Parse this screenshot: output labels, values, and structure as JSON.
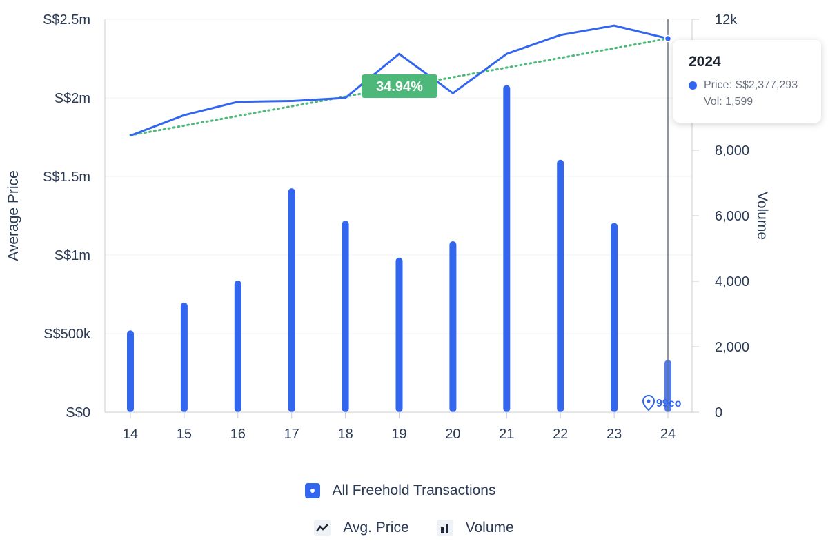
{
  "chart_data": {
    "type": "bar",
    "x": [
      "14",
      "15",
      "16",
      "17",
      "18",
      "19",
      "20",
      "21",
      "22",
      "23",
      "24"
    ],
    "series": [
      {
        "name": "All Freehold Transactions",
        "type": "bar",
        "axis": "right",
        "values": [
          2500,
          3350,
          4020,
          6840,
          5850,
          4720,
          5220,
          9990,
          7710,
          5780,
          1599
        ]
      },
      {
        "type": "line",
        "axis": "left",
        "values": [
          1760000,
          1890000,
          1975000,
          1980000,
          2000000,
          2280000,
          2030000,
          2280000,
          2400000,
          2460000,
          2377293
        ]
      }
    ],
    "trendline": {
      "start": 1762000,
      "end": 2377293,
      "label": "34.94%"
    },
    "left_axis": {
      "title": "Average Price",
      "min": 0,
      "max": 2500000,
      "ticks": [
        "S$0",
        "S$500k",
        "S$1m",
        "S$1.5m",
        "S$2m",
        "S$2.5m"
      ]
    },
    "right_axis": {
      "title": "Volume",
      "min": 0,
      "max": 12000,
      "ticks": [
        "0",
        "2,000",
        "4,000",
        "6,000",
        "8,000",
        "12k"
      ],
      "tick_values": [
        0,
        2000,
        4000,
        6000,
        8000,
        12000
      ]
    },
    "grid": true,
    "legend_position": "bottom",
    "colors": {
      "bar": "#3366ee",
      "line": "#3366ee",
      "trend": "#4db87a"
    }
  },
  "tooltip": {
    "title": "2024",
    "price_label": "Price: S$2,377,293",
    "vol_label": "Vol: 1,599"
  },
  "watermark": {
    "text": "99co"
  },
  "legend": {
    "series_label": "All Freehold Transactions",
    "line_label": "Avg. Price",
    "volume_label": "Volume"
  }
}
